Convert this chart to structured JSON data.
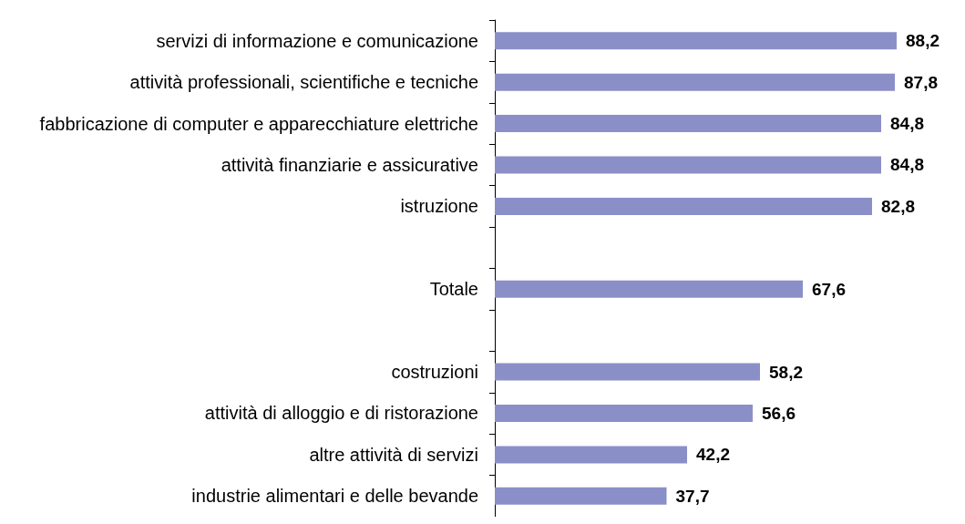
{
  "chart_data": {
    "type": "bar",
    "orientation": "horizontal",
    "categories": [
      "servizi di informazione e comunicazione",
      "attività professionali, scientifiche e tecniche",
      "fabbricazione di computer e apparecchiature elettriche",
      "attività finanziarie e assicurative",
      "istruzione",
      null,
      "Totale",
      null,
      "costruzioni",
      "attività di alloggio e di ristorazione",
      "altre attività di servizi",
      "industrie alimentari e delle bevande"
    ],
    "values": [
      88.2,
      87.8,
      84.8,
      84.8,
      82.8,
      null,
      67.6,
      null,
      58.2,
      56.6,
      42.2,
      37.7
    ],
    "value_labels": [
      "88,2",
      "87,8",
      "84,8",
      "84,8",
      "82,8",
      null,
      "67,6",
      null,
      "58,2",
      "56,6",
      "42,2",
      "37,7"
    ],
    "color": "#8b8fc8"
  }
}
